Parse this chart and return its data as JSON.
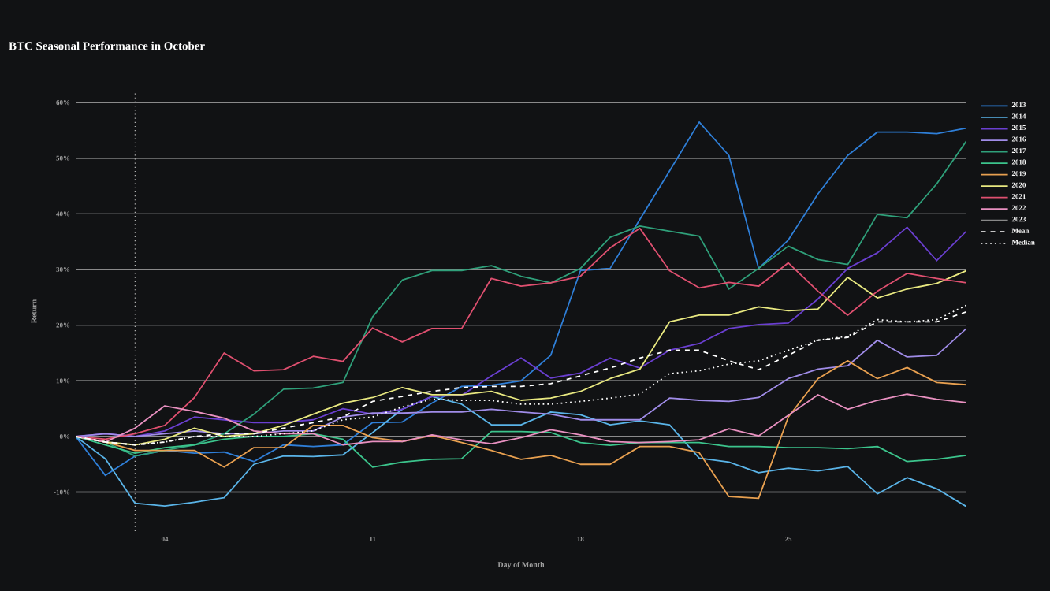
{
  "chart_data": {
    "type": "line",
    "title": "BTC Seasonal Performance in October",
    "xlabel": "Day of Month",
    "ylabel": "Return",
    "x": [
      1,
      2,
      3,
      4,
      5,
      6,
      7,
      8,
      9,
      10,
      11,
      12,
      13,
      14,
      15,
      16,
      17,
      18,
      19,
      20,
      21,
      22,
      23,
      24,
      25,
      26,
      27,
      28,
      29,
      30,
      31
    ],
    "xlim": [
      1,
      31
    ],
    "ylim": [
      -17,
      62
    ],
    "xticks": [
      {
        "value": 4,
        "label": "04"
      },
      11,
      18,
      25
    ],
    "yticks": [
      {
        "value": -10,
        "label": "-10%"
      },
      {
        "value": 0,
        "label": "0%"
      },
      {
        "value": 10,
        "label": "10%"
      },
      {
        "value": 20,
        "label": "20%"
      },
      {
        "value": 30,
        "label": "30%"
      },
      {
        "value": 40,
        "label": "40%"
      },
      {
        "value": 50,
        "label": "50%"
      },
      {
        "value": 60,
        "label": "60%"
      }
    ],
    "grid": "y",
    "legend": "right",
    "marker": "none",
    "ref_lines": [
      {
        "axis": "x",
        "value": 3,
        "color": "#bbbbbb",
        "line_style": "dotted"
      }
    ],
    "series": [
      {
        "name": "2013",
        "color": "#2f7fd8",
        "values": [
          0,
          -7,
          -3.5,
          -2.5,
          -3,
          -2.8,
          -4.5,
          -1.5,
          -1.8,
          -1.5,
          2.5,
          2.6,
          6,
          9,
          9.2,
          10,
          14.6,
          29.8,
          30.2,
          39,
          47.7,
          56.5,
          50.5,
          30.2,
          35.3,
          43.6,
          50.5,
          54.7,
          54.7,
          54.4,
          55.4
        ]
      },
      {
        "name": "2014",
        "color": "#5ab4e8",
        "values": [
          0,
          -4,
          -12,
          -12.5,
          -11.8,
          -11,
          -5,
          -3.5,
          -3.6,
          -3.3,
          0.7,
          4.9,
          7.2,
          5.8,
          2.1,
          2.1,
          4.4,
          3.9,
          2.1,
          2.8,
          2.1,
          -3.9,
          -4.6,
          -6.5,
          -5.7,
          -6.2,
          -5.4,
          -10.3,
          -7.4,
          -9.4,
          -12.6
        ]
      },
      {
        "name": "2015",
        "color": "#6a3fd0",
        "values": [
          0,
          0.5,
          0,
          1,
          3.5,
          3,
          2.5,
          2.5,
          3,
          5,
          4,
          4.9,
          7.2,
          7.4,
          10.9,
          14.1,
          10.5,
          11.4,
          14.1,
          12.3,
          15.5,
          16.7,
          19.4,
          20.1,
          20.4,
          24.7,
          30.2,
          33,
          37.6,
          31.6,
          36.9
        ]
      },
      {
        "name": "2016",
        "color": "#a08ce8",
        "values": [
          0,
          0.5,
          0,
          0.5,
          1,
          0.5,
          0.5,
          1,
          1,
          3.5,
          4.2,
          4.2,
          4.4,
          4.4,
          4.9,
          4.4,
          4,
          3,
          3,
          3,
          6.9,
          6.5,
          6.3,
          7,
          10.4,
          12.1,
          12.7,
          17.3,
          14.3,
          14.6,
          19.4
        ]
      },
      {
        "name": "2017",
        "color": "#2fa07a",
        "values": [
          0,
          -1,
          -3.5,
          -2.5,
          -1.5,
          0.5,
          4,
          8.5,
          8.7,
          9.7,
          21.5,
          28.1,
          29.8,
          29.8,
          30.7,
          28.8,
          27.6,
          30.2,
          35.8,
          37.8,
          36.9,
          36,
          26.5,
          30.2,
          34.2,
          31.8,
          30.9,
          39.9,
          39.3,
          45.4,
          53.1
        ]
      },
      {
        "name": "2018",
        "color": "#3cc48c",
        "values": [
          0,
          -1.5,
          -3,
          -2,
          -1.5,
          -0.5,
          0,
          0,
          0.5,
          -0.5,
          -5.5,
          -4.6,
          -4.1,
          -4,
          0.9,
          0.9,
          0.7,
          -1.1,
          -1.6,
          -1.1,
          -1.1,
          -1.1,
          -1.8,
          -1.8,
          -2,
          -2,
          -2.2,
          -1.8,
          -4.5,
          -4.1,
          -3.4
        ]
      },
      {
        "name": "2019",
        "color": "#e8a050",
        "values": [
          0,
          -1,
          -2.5,
          -2.5,
          -2.5,
          -5.5,
          -2,
          -2,
          2,
          2,
          -0.2,
          -0.9,
          0.2,
          -1.1,
          -2.5,
          -4.1,
          -3.4,
          -5,
          -5,
          -1.8,
          -1.8,
          -2.9,
          -10.8,
          -11.1,
          3.5,
          10.4,
          13.6,
          10.4,
          12.4,
          9.7,
          9.3
        ]
      },
      {
        "name": "2020",
        "color": "#e8e880",
        "values": [
          0,
          -1,
          -1.5,
          -0.5,
          1.5,
          0,
          0.5,
          2,
          4,
          6,
          7,
          8.8,
          7.5,
          7.5,
          8.1,
          6.5,
          6.9,
          8.1,
          10.4,
          12.1,
          20.6,
          21.8,
          21.8,
          23.3,
          22.6,
          22.9,
          28.6,
          24.9,
          26.5,
          27.5,
          29.8
        ]
      },
      {
        "name": "2021",
        "color": "#e05070",
        "values": [
          0,
          -0.5,
          0.5,
          2,
          7,
          15,
          11.8,
          12,
          14.4,
          13.5,
          19.5,
          17,
          19.4,
          19.4,
          28.4,
          27,
          27.6,
          28.8,
          33.9,
          37.4,
          29.8,
          26.7,
          27.7,
          27,
          31.2,
          26.1,
          21.8,
          26.1,
          29.3,
          28.4,
          27.6
        ]
      },
      {
        "name": "2022",
        "color": "#e890c0",
        "values": [
          0,
          -1,
          1.5,
          5.5,
          4.5,
          3.3,
          1,
          0.5,
          0.5,
          -1.5,
          -0.9,
          -0.9,
          0.3,
          -0.6,
          -1.3,
          -0.2,
          1.2,
          0.3,
          -0.9,
          -1.1,
          -0.9,
          -0.6,
          1.4,
          0.1,
          3.8,
          7.5,
          4.9,
          6.5,
          7.6,
          6.7,
          6.1
        ]
      },
      {
        "name": "2023",
        "color": "#888888",
        "values": [
          null,
          null,
          null,
          null,
          null,
          null,
          null,
          null,
          null,
          null,
          null,
          null,
          null,
          null,
          null,
          null,
          null,
          null,
          null,
          null,
          null,
          null,
          null,
          null,
          null,
          null,
          null,
          null,
          null,
          null,
          null
        ]
      },
      {
        "name": "Mean",
        "color": "#ffffff",
        "line_style": "dashed",
        "values": [
          0,
          -1,
          -1.5,
          -1,
          0,
          0.5,
          0.5,
          1.5,
          2.5,
          3.5,
          6.3,
          7.2,
          8.1,
          8.8,
          9,
          9,
          9.5,
          10.9,
          12.3,
          14.1,
          15.5,
          15.5,
          13.6,
          12,
          14.6,
          17.3,
          17.8,
          20.6,
          20.6,
          20.6,
          22.4
        ]
      },
      {
        "name": "Median",
        "color": "#ffffff",
        "line_style": "dotted",
        "values": [
          0,
          -1,
          -1.5,
          -1,
          0,
          0,
          0,
          0.5,
          1,
          3,
          3.5,
          5.3,
          6.7,
          6.5,
          6.5,
          5.8,
          5.8,
          6.3,
          6.9,
          7.6,
          11.3,
          11.8,
          13,
          13.6,
          15.5,
          17.3,
          18,
          21,
          20.6,
          21,
          23.6
        ]
      }
    ]
  }
}
